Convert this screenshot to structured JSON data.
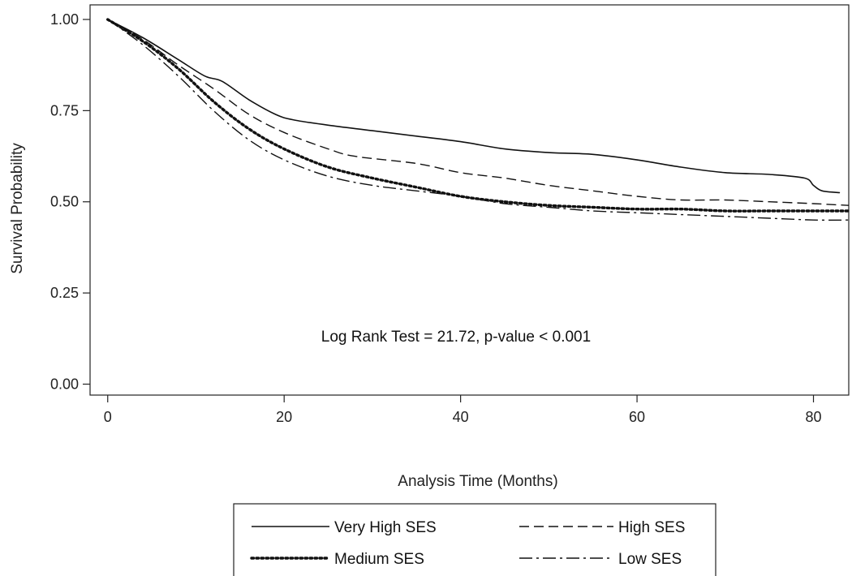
{
  "chart_data": {
    "type": "line",
    "title": "",
    "xlabel": "Analysis Time (Months)",
    "ylabel": "Survival Probability",
    "xlim": [
      -2,
      84
    ],
    "ylim": [
      -0.03,
      1.04
    ],
    "xticks": [
      0,
      20,
      40,
      60,
      80
    ],
    "xtick_labels": [
      "0",
      "20",
      "40",
      "60",
      "80"
    ],
    "yticks": [
      0.0,
      0.25,
      0.5,
      0.75,
      1.0
    ],
    "ytick_labels": [
      "0.00",
      "0.25",
      "0.50",
      "0.75",
      "1.00"
    ],
    "grid": false,
    "legend_position": "bottom",
    "annotation": "Log Rank Test = 21.72, p-value < 0.001",
    "series": [
      {
        "name": "Very High SES",
        "style": "solid",
        "x": [
          0,
          4,
          8,
          11,
          13,
          16,
          19,
          21,
          25,
          30,
          35,
          40,
          45,
          50,
          55,
          60,
          65,
          70,
          75,
          79,
          80,
          81,
          83
        ],
        "y": [
          1.0,
          0.95,
          0.89,
          0.845,
          0.83,
          0.78,
          0.74,
          0.725,
          0.71,
          0.695,
          0.68,
          0.665,
          0.645,
          0.635,
          0.63,
          0.615,
          0.595,
          0.58,
          0.575,
          0.565,
          0.545,
          0.53,
          0.525
        ]
      },
      {
        "name": "High SES",
        "style": "dashed",
        "x": [
          0,
          4,
          8,
          12,
          16,
          20,
          25,
          28,
          35,
          40,
          45,
          50,
          55,
          60,
          65,
          70,
          75,
          80,
          84
        ],
        "y": [
          1.0,
          0.945,
          0.875,
          0.81,
          0.74,
          0.69,
          0.645,
          0.625,
          0.605,
          0.58,
          0.565,
          0.545,
          0.53,
          0.515,
          0.505,
          0.505,
          0.5,
          0.495,
          0.49
        ]
      },
      {
        "name": "Medium SES",
        "style": "dotted",
        "x": [
          0,
          4,
          8,
          12,
          16,
          20,
          25,
          30,
          35,
          40,
          45,
          50,
          55,
          60,
          65,
          70,
          75,
          80,
          84
        ],
        "y": [
          1.0,
          0.94,
          0.865,
          0.775,
          0.7,
          0.645,
          0.595,
          0.565,
          0.54,
          0.515,
          0.5,
          0.49,
          0.485,
          0.48,
          0.48,
          0.475,
          0.475,
          0.475,
          0.475
        ]
      },
      {
        "name": "Low SES",
        "style": "dashdot",
        "x": [
          0,
          4,
          8,
          12,
          16,
          20,
          25,
          30,
          35,
          40,
          45,
          50,
          55,
          60,
          65,
          70,
          75,
          80,
          84
        ],
        "y": [
          1.0,
          0.93,
          0.845,
          0.75,
          0.67,
          0.615,
          0.57,
          0.545,
          0.53,
          0.515,
          0.495,
          0.485,
          0.475,
          0.47,
          0.465,
          0.46,
          0.455,
          0.45,
          0.45
        ]
      }
    ]
  }
}
